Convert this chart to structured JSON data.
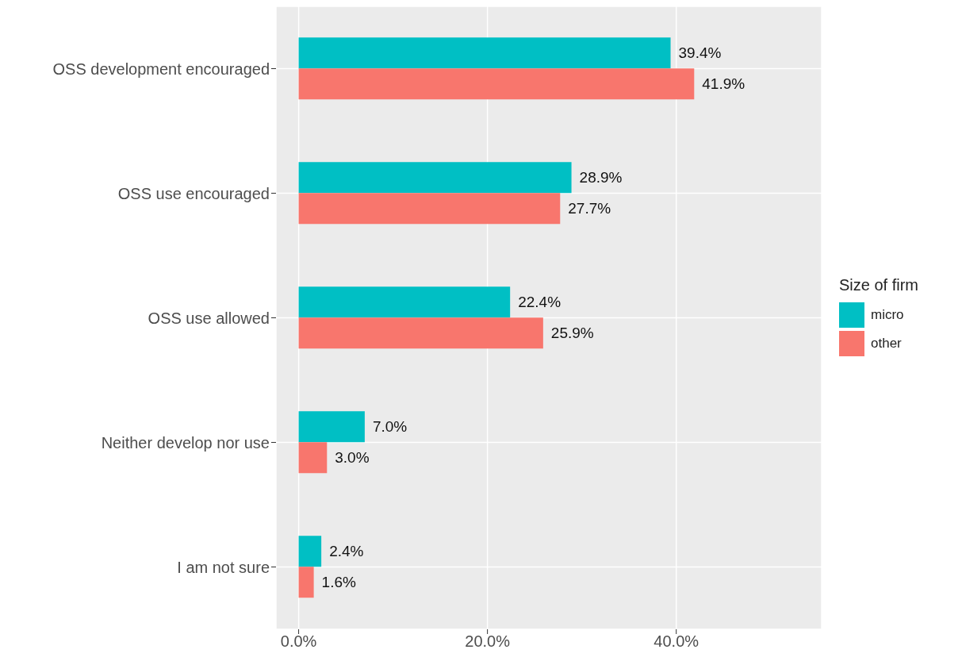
{
  "chart_data": {
    "type": "bar",
    "orientation": "horizontal",
    "categories": [
      "OSS development encouraged",
      "OSS use encouraged",
      "OSS use allowed",
      "Neither develop nor use",
      "I am not sure"
    ],
    "series": [
      {
        "name": "micro",
        "color": "#00bfc4",
        "values": [
          39.4,
          28.9,
          22.4,
          7.0,
          2.4
        ],
        "value_labels": [
          "39.4%",
          "28.9%",
          "22.4%",
          "7.0%",
          "2.4%"
        ]
      },
      {
        "name": "other",
        "color": "#f8766d",
        "values": [
          41.9,
          27.7,
          25.9,
          3.0,
          1.6
        ],
        "value_labels": [
          "41.9%",
          "27.7%",
          "25.9%",
          "3.0%",
          "1.6%"
        ]
      }
    ],
    "xlim": [
      -2.4,
      55.4
    ],
    "xticks": [
      {
        "value": 0,
        "label": "0.0%"
      },
      {
        "value": 20,
        "label": "20.0%"
      },
      {
        "value": 40,
        "label": "40.0%"
      }
    ],
    "grid": true,
    "legend": "right",
    "legend_title": "Size of firm"
  }
}
